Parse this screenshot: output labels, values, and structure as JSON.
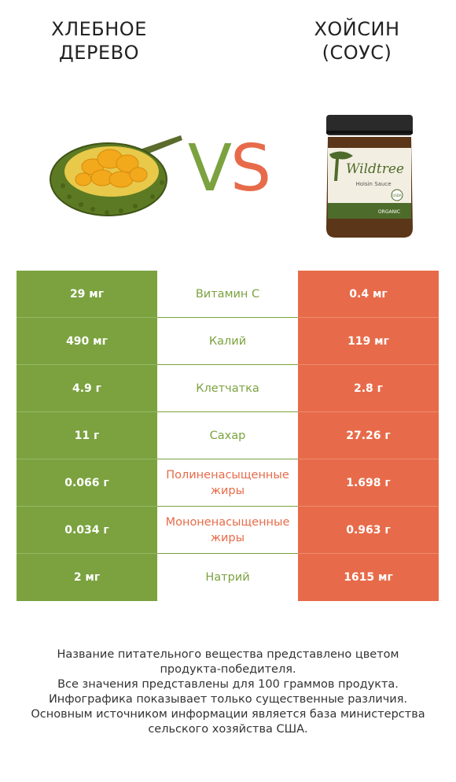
{
  "left_food": {
    "title_line1": "ХЛЕБНОЕ",
    "title_line2": "ДЕРЕВО",
    "image_icon": "jackfruit-image"
  },
  "right_food": {
    "title_line1": "ХОЙСИН",
    "title_line2": "(СОУС)",
    "image_icon": "hoisin-jar-image",
    "jar_label": {
      "brand": "Wildtree",
      "product": "Hoisin Sauce",
      "badge": "USDA",
      "footer": "ORGANIC"
    }
  },
  "vs": {
    "v": "V",
    "s": "S"
  },
  "colors": {
    "left": "#7ba23f",
    "right": "#e76b4a"
  },
  "rows": [
    {
      "nutrient": "Витамин C",
      "left": "29 мг",
      "right": "0.4 мг",
      "winner": "left"
    },
    {
      "nutrient": "Калий",
      "left": "490 мг",
      "right": "119 мг",
      "winner": "left"
    },
    {
      "nutrient": "Клетчатка",
      "left": "4.9 г",
      "right": "2.8 г",
      "winner": "left"
    },
    {
      "nutrient": "Сахар",
      "left": "11 г",
      "right": "27.26 г",
      "winner": "left"
    },
    {
      "nutrient": "Полиненасыщенные жиры",
      "left": "0.066 г",
      "right": "1.698 г",
      "winner": "right"
    },
    {
      "nutrient": "Мононенасыщенные жиры",
      "left": "0.034 г",
      "right": "0.963 г",
      "winner": "right"
    },
    {
      "nutrient": "Натрий",
      "left": "2 мг",
      "right": "1615 мг",
      "winner": "left"
    }
  ],
  "footer": [
    "Название питательного вещества представлено цветом",
    "продукта-победителя.",
    "Все значения представлены для 100 граммов продукта.",
    "Инфографика показывает только существенные различия.",
    "Основным источником информации является база министерства",
    "сельского хозяйства США."
  ]
}
